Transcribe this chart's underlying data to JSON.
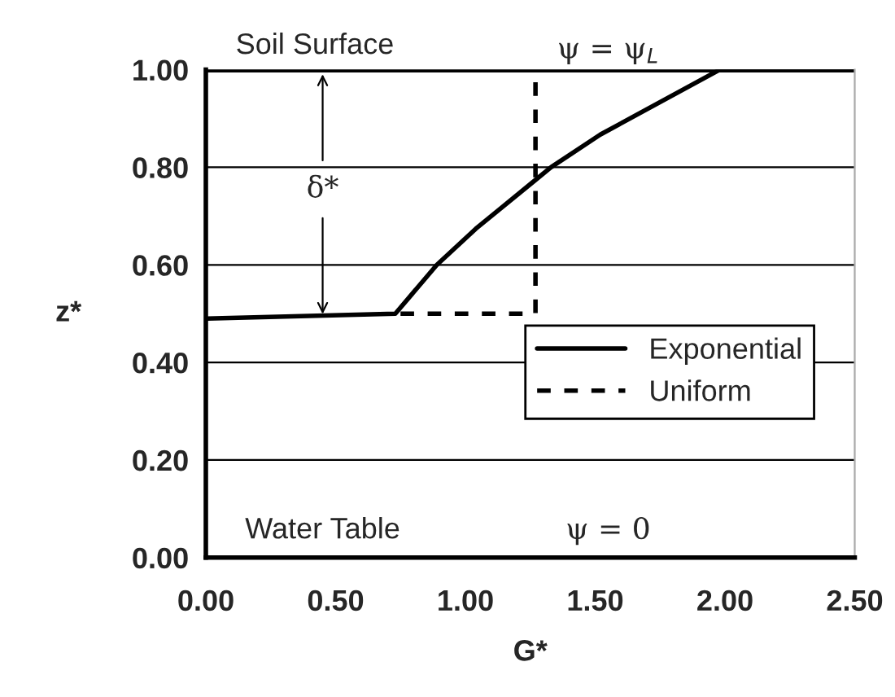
{
  "chart_data": {
    "type": "line",
    "xlabel": "G*",
    "ylabel": "z*",
    "series": [
      {
        "name": "Exponential",
        "color": "#000000",
        "line_style": "solid",
        "x": [
          0,
          0.73,
          0.89,
          1.04,
          1.27,
          1.33,
          1.52,
          1.98,
          2.5
        ],
        "values": [
          0.49,
          0.5,
          0.6,
          0.674,
          0.774,
          0.8,
          0.867,
          1.0,
          1.0
        ]
      },
      {
        "name": "Uniform",
        "color": "#000000",
        "line_style": "dashed",
        "x": [
          0.75,
          1.27,
          1.27
        ],
        "values": [
          0.5,
          0.5,
          1.0
        ]
      }
    ],
    "xlim": [
      0,
      2.5
    ],
    "xticks": [
      {
        "value": 0,
        "label": "0.00"
      },
      {
        "value": 0.5,
        "label": "0.50"
      },
      {
        "value": 1,
        "label": "1.00"
      },
      {
        "value": 1.5,
        "label": "1.50"
      },
      {
        "value": 2,
        "label": "2.00"
      },
      {
        "value": 2.5,
        "label": "2.50"
      }
    ],
    "ylim": [
      0,
      1
    ],
    "yticks": [
      {
        "value": 0,
        "label": "0.00"
      },
      {
        "value": 0.2,
        "label": "0.20"
      },
      {
        "value": 0.4,
        "label": "0.40"
      },
      {
        "value": 0.6,
        "label": "0.60"
      },
      {
        "value": 0.8,
        "label": "0.80"
      },
      {
        "value": 1,
        "label": "1.00"
      }
    ],
    "grid": "y",
    "legend": "right",
    "marker": "none",
    "ref_lines": [
      {
        "axis": "y",
        "value": 1.0,
        "label": "Soil Surface",
        "color": "#000000"
      }
    ],
    "annotations": [
      "ψ = ψ$_{L}$",
      {
        "text": "δ*",
        "x": 0.45,
        "y": 1.0
      },
      "Water Table",
      "ψ = 0"
    ]
  }
}
